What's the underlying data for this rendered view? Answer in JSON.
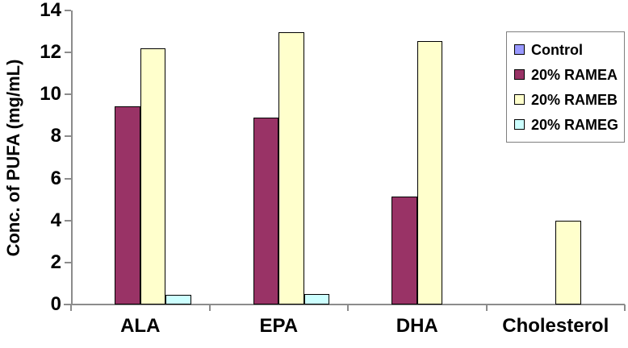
{
  "chart_data": {
    "type": "bar",
    "categories": [
      "ALA",
      "EPA",
      "DHA",
      "Cholesterol"
    ],
    "series": [
      {
        "name": "Control",
        "color": "#9999FF",
        "values": [
          0,
          0,
          0,
          0
        ]
      },
      {
        "name": "20% RAMEA",
        "color": "#993366",
        "values": [
          9.45,
          8.9,
          5.15,
          0
        ]
      },
      {
        "name": "20% RAMEB",
        "color": "#FFFFCC",
        "values": [
          12.2,
          12.95,
          12.55,
          4.0
        ]
      },
      {
        "name": "20% RAMEG",
        "color": "#CCFFFF",
        "values": [
          0.45,
          0.5,
          0,
          0
        ]
      }
    ],
    "title": "",
    "xlabel": "",
    "ylabel": "Conc. of PUFA (mg/mL)",
    "ylim": [
      0,
      14
    ],
    "ytick_step": 2,
    "grid": false,
    "legend_position": "right",
    "bar_border_color": "#000000",
    "axis_color": "#8C8C8C",
    "background_color": "#FFFFFF"
  }
}
